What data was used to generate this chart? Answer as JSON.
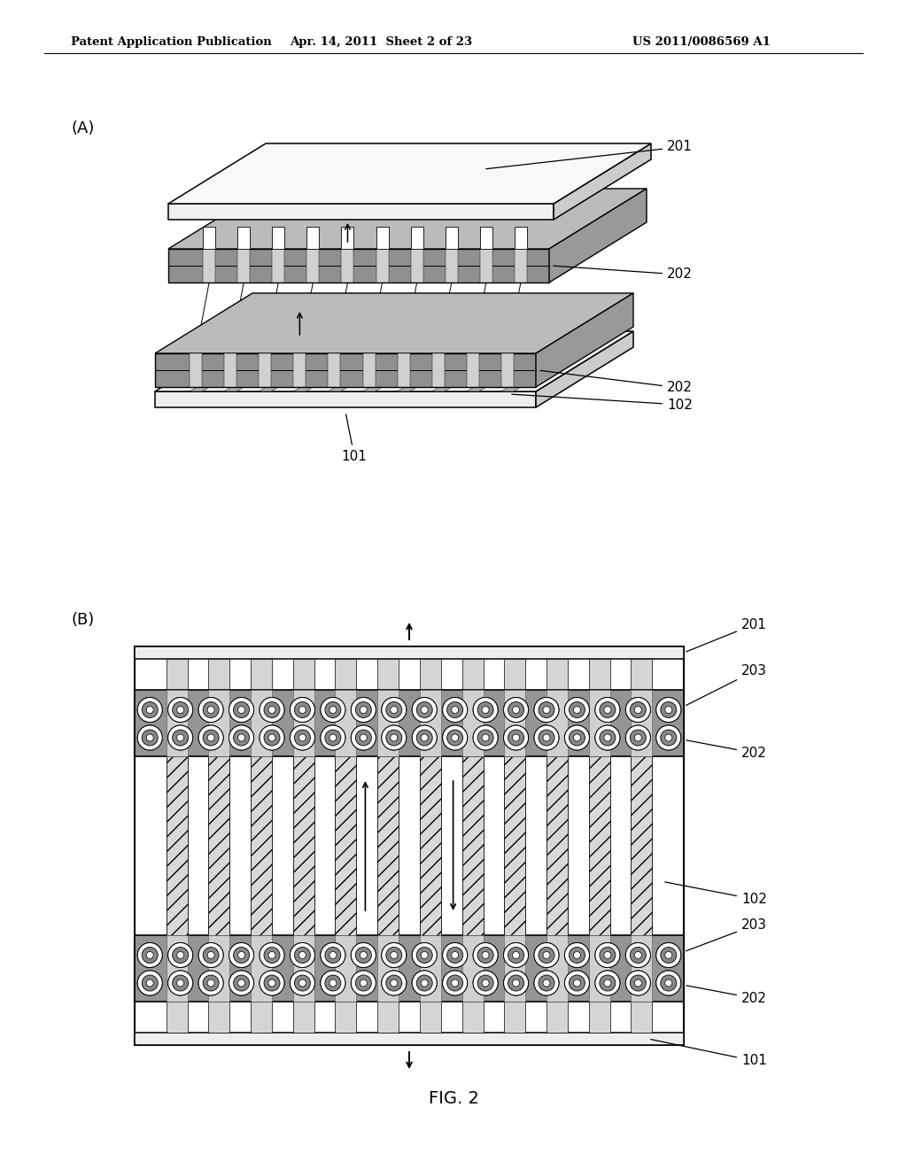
{
  "header_left": "Patent Application Publication",
  "header_center": "Apr. 14, 2011  Sheet 2 of 23",
  "header_right": "US 2011/0086569 A1",
  "bg_color": "#ffffff",
  "text_color": "#000000",
  "label_A": "(A)",
  "label_B": "(B)",
  "fig_label": "FIG. 2",
  "gray_band": "#a0a0a0",
  "light_plate": "#f0f0f0",
  "wire_fill": "#c8c8c8",
  "wire_hatch_fill": "#d8d8d8"
}
